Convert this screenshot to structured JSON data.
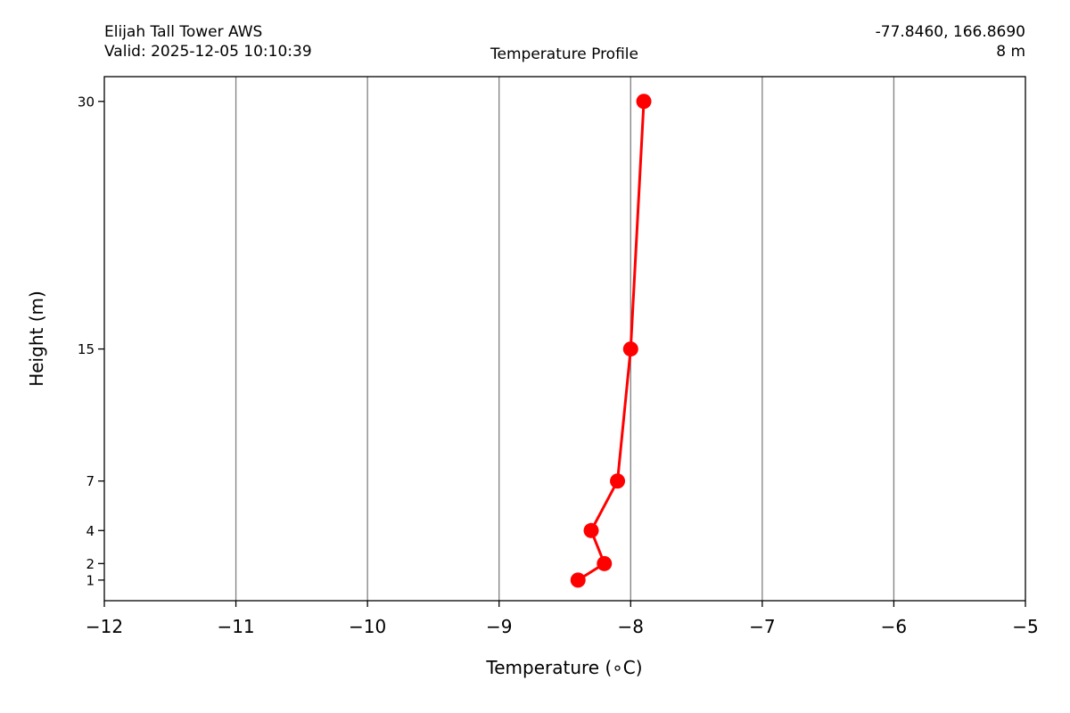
{
  "header": {
    "station": "Elijah Tall Tower AWS",
    "valid": "Valid: 2025-12-05 10:10:39",
    "coords": "-77.8460, 166.8690",
    "height": "8 m"
  },
  "chart_data": {
    "type": "line",
    "title": "Temperature Profile",
    "xlabel": "Temperature (∘C)",
    "ylabel": "Height (m)",
    "xlim": [
      -12,
      -5
    ],
    "ylim": [
      -0.25,
      31.5
    ],
    "x_ticks": [
      -12,
      -11,
      -10,
      -9,
      -8,
      -7,
      -6,
      -5
    ],
    "x_tick_labels": [
      "−12",
      "−11",
      "−10",
      "−9",
      "−8",
      "−7",
      "−6",
      "−5"
    ],
    "y_ticks": [
      1,
      2,
      4,
      7,
      15,
      30
    ],
    "y_tick_labels": [
      "1",
      "2",
      "4",
      "7",
      "15",
      "30"
    ],
    "grid": "vertical",
    "series": [
      {
        "color": "#ff0000",
        "points": [
          {
            "height": 1,
            "temp": -8.4
          },
          {
            "height": 2,
            "temp": -8.2
          },
          {
            "height": 4,
            "temp": -8.3
          },
          {
            "height": 7,
            "temp": -8.1
          },
          {
            "height": 15,
            "temp": -8.0
          },
          {
            "height": 30,
            "temp": -7.9
          }
        ]
      }
    ],
    "gridline_color": "#808080"
  }
}
